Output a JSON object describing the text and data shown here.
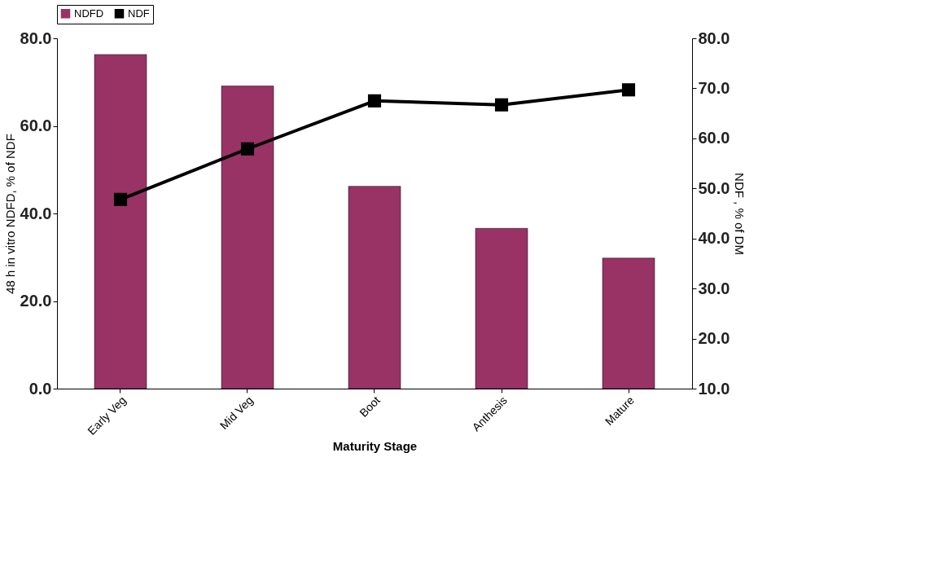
{
  "chart_data": {
    "type": "bar",
    "categories": [
      "Early Veg",
      "Mid Veg",
      "Boot",
      "Anthesis",
      "Mature"
    ],
    "xlabel": "Maturity Stage",
    "ylabel": "48 h in vitro NDFD, % of NDF",
    "y2label": "NDF , % of DM",
    "series": [
      {
        "name": "NDFD",
        "color": "#993366",
        "values": [
          76.3,
          69.1,
          46.2,
          36.6,
          29.8
        ]
      },
      {
        "name": "NDF",
        "type": "line",
        "axis": "y2",
        "color": "#000000",
        "marker": "square",
        "values": [
          47.8,
          57.9,
          67.5,
          66.7,
          69.7
        ]
      }
    ],
    "ylim": [
      0,
      80
    ],
    "yticks": [
      {
        "value": 0,
        "label": "0.0"
      },
      {
        "value": 20,
        "label": "20.0"
      },
      {
        "value": 40,
        "label": "40.0"
      },
      {
        "value": 60,
        "label": "60.0"
      },
      {
        "value": 80,
        "label": "80.0"
      }
    ],
    "y2lim": [
      10,
      80
    ],
    "y2ticks": [
      {
        "value": 10,
        "label": "10.0"
      },
      {
        "value": 20,
        "label": "20.0"
      },
      {
        "value": 30,
        "label": "30.0"
      },
      {
        "value": 40,
        "label": "40.0"
      },
      {
        "value": 50,
        "label": "50.0"
      },
      {
        "value": 60,
        "label": "60.0"
      },
      {
        "value": 70,
        "label": "70.0"
      },
      {
        "value": 80,
        "label": "80.0"
      }
    ],
    "legend": "top",
    "grid": false
  }
}
